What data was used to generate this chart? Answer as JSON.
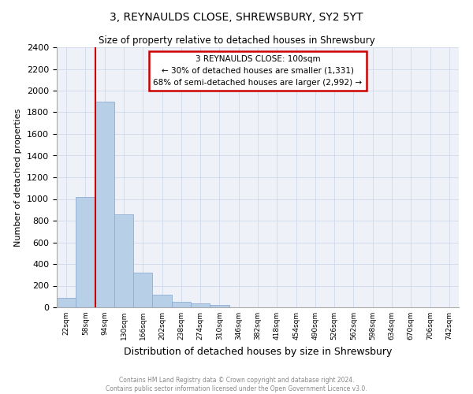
{
  "title": "3, REYNAULDS CLOSE, SHREWSBURY, SY2 5YT",
  "subtitle": "Size of property relative to detached houses in Shrewsbury",
  "xlabel": "Distribution of detached houses by size in Shrewsbury",
  "ylabel": "Number of detached properties",
  "categories": [
    "22sqm",
    "58sqm",
    "94sqm",
    "130sqm",
    "166sqm",
    "202sqm",
    "238sqm",
    "274sqm",
    "310sqm",
    "346sqm",
    "382sqm",
    "418sqm",
    "454sqm",
    "490sqm",
    "526sqm",
    "562sqm",
    "598sqm",
    "634sqm",
    "670sqm",
    "706sqm",
    "742sqm"
  ],
  "values": [
    85,
    1020,
    1900,
    860,
    320,
    115,
    50,
    40,
    25,
    0,
    0,
    0,
    0,
    0,
    0,
    0,
    0,
    0,
    0,
    0,
    0
  ],
  "bar_color": "#b8cfe8",
  "bar_edge_color": "#8eadd4",
  "vline_color": "#cc0000",
  "vline_xindex": 2,
  "annotation_line1": "3 REYNAULDS CLOSE: 100sqm",
  "annotation_line2": "← 30% of detached houses are smaller (1,331)",
  "annotation_line3": "68% of semi-detached houses are larger (2,992) →",
  "annotation_box_color": "#cc0000",
  "ylim": [
    0,
    2400
  ],
  "yticks": [
    0,
    200,
    400,
    600,
    800,
    1000,
    1200,
    1400,
    1600,
    1800,
    2000,
    2200,
    2400
  ],
  "grid_color": "#c8d4e8",
  "background_color": "#eef2f8",
  "footer_line1": "Contains HM Land Registry data © Crown copyright and database right 2024.",
  "footer_line2": "Contains public sector information licensed under the Open Government Licence v3.0."
}
